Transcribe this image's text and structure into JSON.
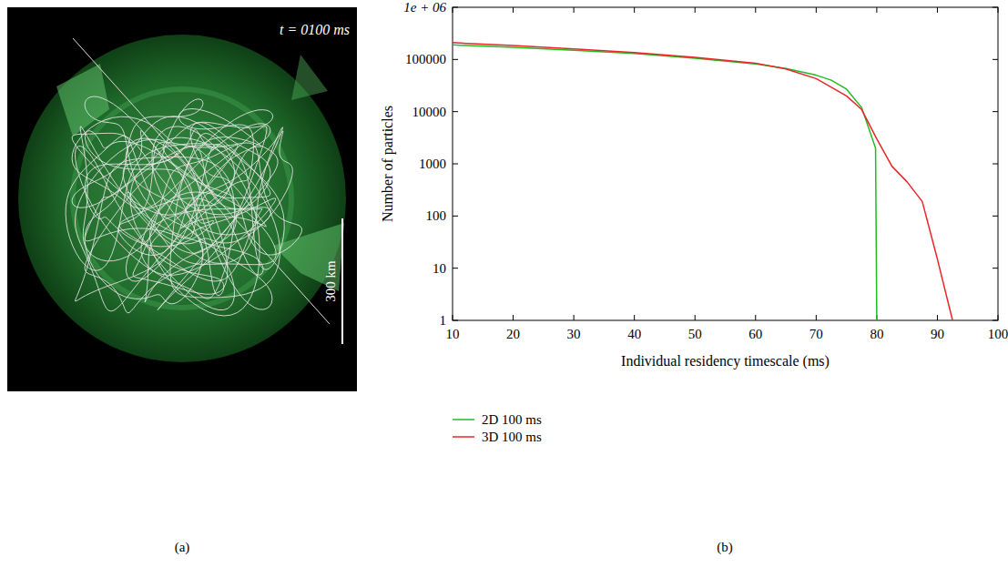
{
  "image_panel": {
    "time_label": "t = 0100 ms",
    "scale_label": "300 km",
    "panel_label": "(a)"
  },
  "chart_data": {
    "type": "line",
    "title": "(b)",
    "x_label": "Individual residency timescale (ms)",
    "y_label": "Number of particles",
    "xlim": [
      10,
      100
    ],
    "xticks": [
      10,
      20,
      30,
      40,
      50,
      60,
      70,
      80,
      90,
      100
    ],
    "ylim": [
      1,
      1000000
    ],
    "yticks": [
      1,
      10,
      100,
      1000,
      10000,
      100000,
      {
        "value": 1000000,
        "label": "1e + 06"
      }
    ],
    "log": "y",
    "grid": false,
    "legend": "bottom",
    "series": [
      {
        "name": "2D 100 ms",
        "color": "#22bb22",
        "x": [
          10,
          20,
          30,
          40,
          50,
          60,
          65,
          70,
          72.5,
          75,
          77.5,
          79.8,
          80
        ],
        "values": [
          190000,
          170000,
          150000,
          130000,
          105000,
          82000,
          67000,
          50000,
          40000,
          27000,
          12000,
          2000,
          1
        ]
      },
      {
        "name": "3D 100 ms",
        "color": "#e8262a",
        "x": [
          10,
          20,
          30,
          40,
          50,
          60,
          65,
          70,
          75,
          77.5,
          80,
          82.5,
          85,
          87.5,
          90,
          92.5
        ],
        "values": [
          210000,
          185000,
          160000,
          135000,
          110000,
          85000,
          66000,
          43000,
          20000,
          11000,
          3000,
          900,
          450,
          190,
          15,
          1
        ]
      }
    ]
  }
}
